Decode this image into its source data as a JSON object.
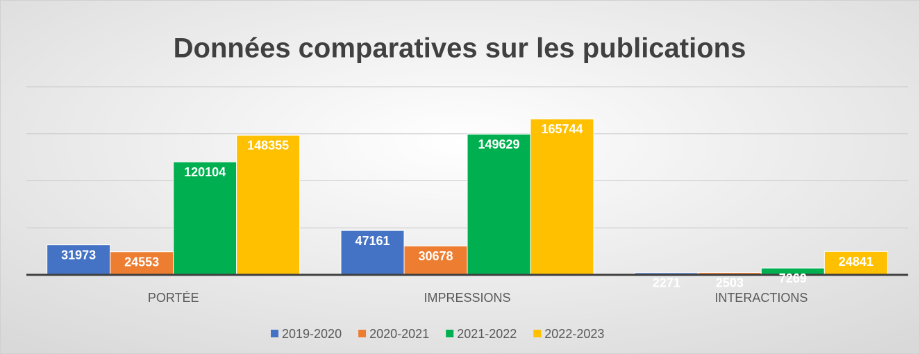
{
  "chart_data": {
    "type": "bar",
    "title": "Données comparatives sur les publications",
    "categories": [
      "PORTÉE",
      "IMPRESSIONS",
      "INTERACTIONS"
    ],
    "series": [
      {
        "name": "2019-2020",
        "color": "#4472c4",
        "values": [
          31973,
          47161,
          2271
        ]
      },
      {
        "name": "2020-2021",
        "color": "#ed7d31",
        "values": [
          24553,
          30678,
          2503
        ]
      },
      {
        "name": "2021-2022",
        "color": "#00b050",
        "values": [
          120104,
          149629,
          7269
        ]
      },
      {
        "name": "2022-2023",
        "color": "#ffc000",
        "values": [
          148355,
          165744,
          24841
        ]
      }
    ],
    "ylim": [
      0,
      200000
    ],
    "yticks": [
      0,
      50000,
      100000,
      150000,
      200000
    ],
    "grid": true
  }
}
